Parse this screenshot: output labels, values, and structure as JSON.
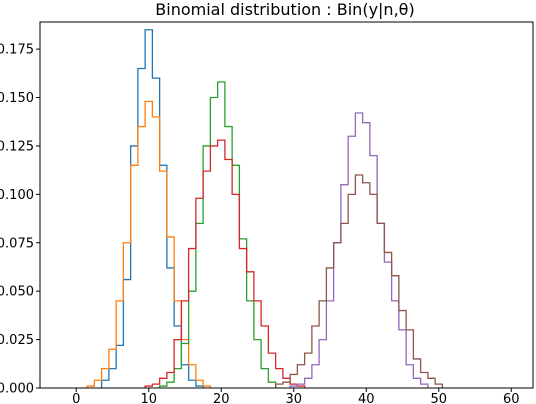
{
  "chart_data": {
    "type": "line",
    "style": "step-histogram",
    "title": "Binomial distribution : Bin(y|n,θ)",
    "xlabel": "",
    "ylabel": "",
    "xlim": [
      -5,
      63
    ],
    "ylim": [
      0,
      0.189
    ],
    "xticks": [
      0,
      10,
      20,
      30,
      40,
      50,
      60
    ],
    "yticks": [
      0.0,
      0.025,
      0.05,
      0.075,
      0.1,
      0.125,
      0.15,
      0.175
    ],
    "ytick_labels": [
      "0.000",
      "0.025",
      "0.050",
      "0.075",
      "0.100",
      "0.125",
      "0.150",
      "0.175"
    ],
    "grid": false,
    "series": [
      {
        "color": "#1f77b4",
        "x": [
          4,
          5,
          6,
          7,
          8,
          9,
          10,
          11,
          12,
          13,
          14,
          15,
          16,
          17
        ],
        "values": [
          0.004,
          0.01,
          0.022,
          0.056,
          0.125,
          0.165,
          0.185,
          0.16,
          0.115,
          0.062,
          0.032,
          0.012,
          0.004,
          0.001
        ]
      },
      {
        "color": "#ff7f0e",
        "x": [
          2,
          3,
          4,
          5,
          6,
          7,
          8,
          9,
          10,
          11,
          12,
          13,
          14,
          15,
          16,
          17,
          18
        ],
        "values": [
          0.001,
          0.004,
          0.01,
          0.02,
          0.045,
          0.075,
          0.115,
          0.135,
          0.148,
          0.14,
          0.112,
          0.078,
          0.045,
          0.025,
          0.012,
          0.004,
          0.001
        ]
      },
      {
        "color": "#2ca02c",
        "x": [
          12,
          13,
          14,
          15,
          16,
          17,
          18,
          19,
          20,
          21,
          22,
          23,
          24,
          25,
          26,
          27
        ],
        "values": [
          0.001,
          0.003,
          0.01,
          0.023,
          0.05,
          0.085,
          0.125,
          0.15,
          0.158,
          0.135,
          0.115,
          0.077,
          0.045,
          0.025,
          0.01,
          0.003
        ]
      },
      {
        "color": "#d62728",
        "x": [
          10,
          11,
          12,
          13,
          14,
          15,
          16,
          17,
          18,
          19,
          20,
          21,
          22,
          23,
          24,
          25,
          26,
          27,
          28,
          29,
          30,
          31
        ],
        "values": [
          0.001,
          0.002,
          0.005,
          0.008,
          0.025,
          0.045,
          0.072,
          0.098,
          0.112,
          0.125,
          0.128,
          0.118,
          0.1,
          0.072,
          0.06,
          0.045,
          0.032,
          0.018,
          0.01,
          0.005,
          0.002,
          0.001
        ]
      },
      {
        "color": "#9467bd",
        "x": [
          30,
          31,
          32,
          33,
          34,
          35,
          36,
          37,
          38,
          39,
          40,
          41,
          42,
          43,
          44,
          45,
          46,
          47,
          48
        ],
        "values": [
          0.001,
          0.002,
          0.005,
          0.012,
          0.025,
          0.045,
          0.075,
          0.105,
          0.13,
          0.142,
          0.137,
          0.12,
          0.085,
          0.065,
          0.045,
          0.03,
          0.012,
          0.005,
          0.002
        ]
      },
      {
        "color": "#8c564b",
        "x": [
          28,
          29,
          30,
          31,
          32,
          33,
          34,
          35,
          36,
          37,
          38,
          39,
          40,
          41,
          42,
          43,
          44,
          45,
          46,
          47,
          48,
          49,
          50
        ],
        "values": [
          0.002,
          0.003,
          0.007,
          0.012,
          0.018,
          0.032,
          0.045,
          0.062,
          0.075,
          0.085,
          0.1,
          0.11,
          0.106,
          0.1,
          0.085,
          0.07,
          0.058,
          0.04,
          0.03,
          0.015,
          0.008,
          0.005,
          0.002
        ]
      }
    ]
  }
}
